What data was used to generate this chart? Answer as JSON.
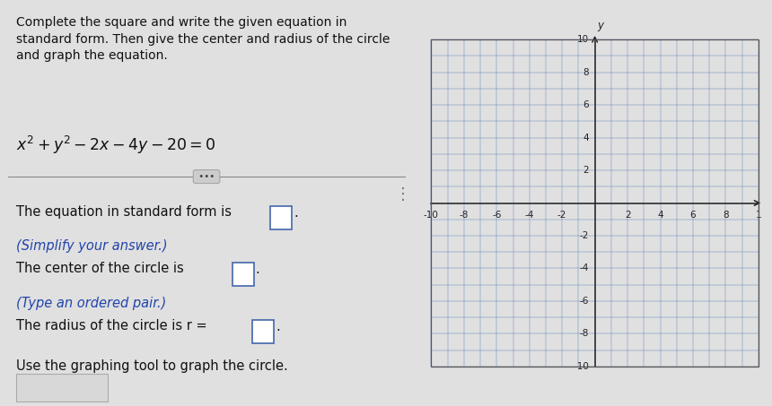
{
  "bg_color": "#e0e0e0",
  "left_panel_bg": "#e0e0e0",
  "right_panel_bg": "#ebebeb",
  "title_text": "Complete the square and write the given equation in\nstandard form. Then give the center and radius of the circle\nand graph the equation.",
  "line1_text": "The equation in standard form is",
  "line1_sub": "(Simplify your answer.)",
  "line2_text": "The center of the circle is",
  "line2_sub": "(Type an ordered pair.)",
  "line3_text": "The radius of the circle is r =",
  "line4_text": "Use the graphing tool to graph the circle.",
  "grid_color": "#6688bb",
  "axis_color": "#333333",
  "divider_color": "#888888",
  "box_color": "#4466aa",
  "text_color": "#111111",
  "italic_color": "#2244aa",
  "title_fontsize": 10.0,
  "body_fontsize": 10.5,
  "eq_fontsize": 12.5,
  "tick_fontsize": 7.5
}
